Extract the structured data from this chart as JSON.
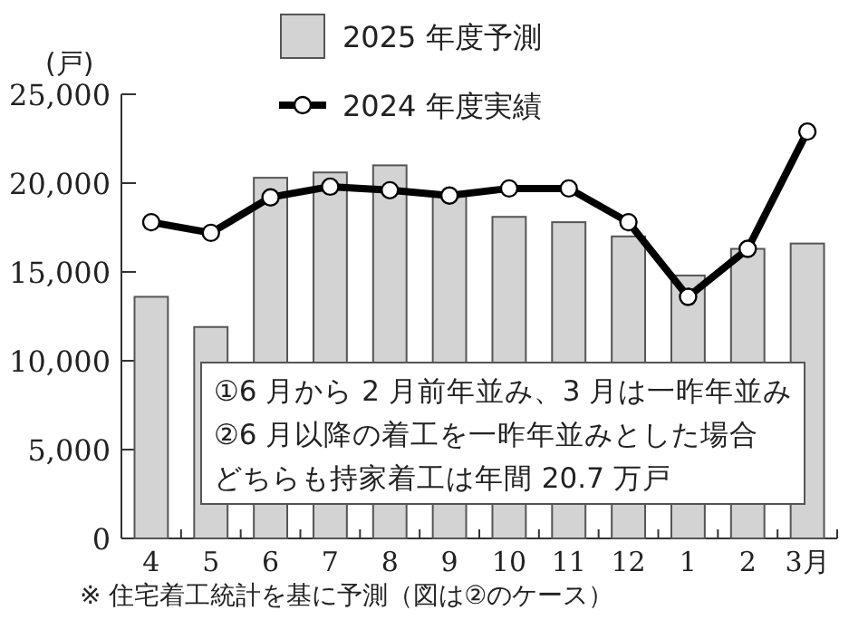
{
  "chart_data": {
    "type": "bar",
    "ylabel": "(戸)",
    "categories": [
      "4",
      "5",
      "6",
      "7",
      "8",
      "9",
      "10",
      "11",
      "12",
      "1",
      "2",
      "3月"
    ],
    "series": [
      {
        "name": "2025 年度予測",
        "color": "#d3d3d3",
        "values": [
          13600,
          11900,
          20300,
          20600,
          21000,
          19400,
          18100,
          17800,
          17000,
          14800,
          16300,
          16600
        ]
      },
      {
        "name": "2024 年度実績",
        "type": "line",
        "color": "#000000",
        "marker": "circle",
        "values": [
          17800,
          17200,
          19200,
          19800,
          19600,
          19300,
          19700,
          19700,
          17800,
          13600,
          16300,
          22900
        ]
      }
    ],
    "ylim": [
      0,
      25000
    ],
    "yticks": [
      0,
      {
        "value": 5000,
        "label": "5,000"
      },
      {
        "value": 10000,
        "label": "10,000"
      },
      {
        "value": 15000,
        "label": "15,000"
      },
      {
        "value": 20000,
        "label": "20,000"
      },
      {
        "value": 25000,
        "label": "25,000"
      }
    ],
    "legend": "top",
    "annotations": [
      "①6 月から 2 月前年並み、3 月は一昨年並み",
      "②6 月以降の着工を一昨年並みとした場合",
      "どちらも持家着工は年間 20.7 万戸",
      "※ 住宅着工統計を基に予測（図は②のケース）"
    ]
  }
}
